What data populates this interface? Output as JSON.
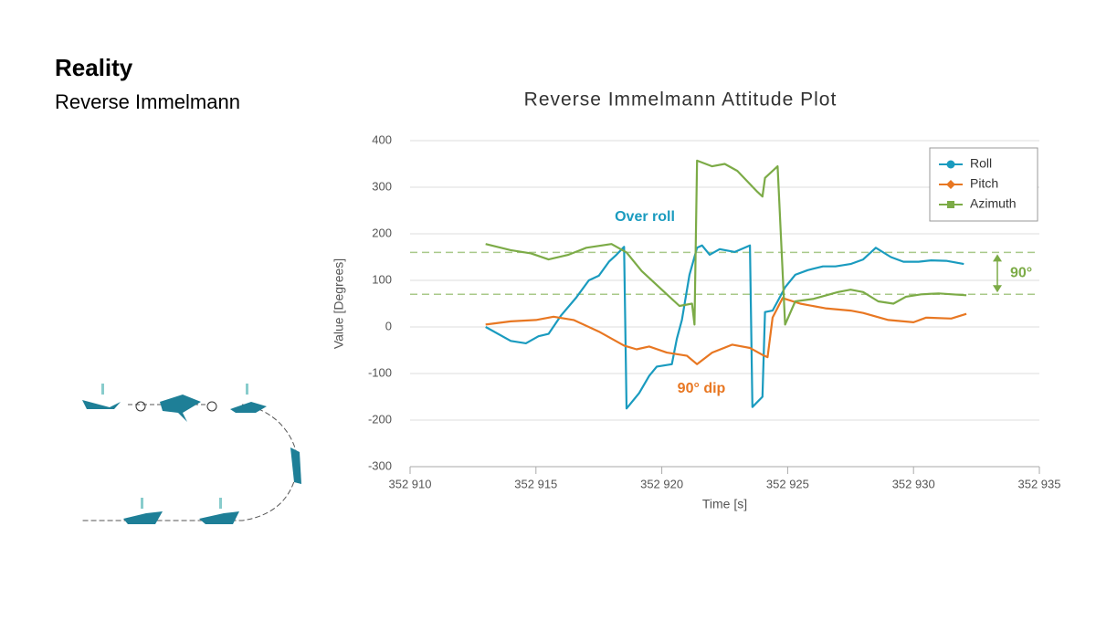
{
  "header": {
    "title": "Reality",
    "subtitle": "Reverse Immelmann"
  },
  "chart_data": {
    "type": "line",
    "title": "Reverse Immelmann Attitude Plot",
    "x_label": "Time [s]",
    "y_label": "Value [Degrees]",
    "xlim": [
      352910,
      352935
    ],
    "xticks": [
      {
        "value": 352910,
        "label": "352 910"
      },
      {
        "value": 352915,
        "label": "352 915"
      },
      {
        "value": 352920,
        "label": "352 920"
      },
      {
        "value": 352925,
        "label": "352 925"
      },
      {
        "value": 352930,
        "label": "352 930"
      },
      {
        "value": 352935,
        "label": "352 935"
      }
    ],
    "ylim": [
      -300,
      400
    ],
    "yticks": [
      -300,
      -200,
      -100,
      0,
      100,
      200,
      300,
      400
    ],
    "grid": true,
    "legend": "upper right",
    "reference_lines": [
      160,
      70
    ],
    "annotations": [
      "Over roll",
      "90° dip",
      "90°"
    ],
    "series": [
      {
        "name": "Roll",
        "color": "#1a9bbf",
        "marker": "circle",
        "x": [
          352913.0,
          352914.0,
          352914.6,
          352915.1,
          352915.5,
          352916.0,
          352916.6,
          352917.1,
          352917.5,
          352917.9,
          352918.2,
          352918.5,
          352918.6,
          352919.1,
          352919.5,
          352919.8,
          352920.4,
          352920.6,
          352920.8,
          352921.1,
          352921.4,
          352921.6,
          352921.9,
          352922.3,
          352922.9,
          352923.5,
          352923.6,
          352924.0,
          352924.1,
          352924.4,
          352924.6,
          352924.9,
          352925.3,
          352925.8,
          352926.4,
          352926.9,
          352927.5,
          352928.0,
          352928.5,
          352929.1,
          352929.6,
          352930.2,
          352930.7,
          352931.3,
          352932.0
        ],
        "values": [
          0,
          -30,
          -35,
          -20,
          -15,
          25,
          63,
          100,
          110,
          140,
          155,
          172,
          -175,
          -142,
          -105,
          -85,
          -80,
          -25,
          15,
          112,
          170,
          175,
          155,
          167,
          161,
          175,
          -172,
          -150,
          32,
          35,
          55,
          85,
          112,
          122,
          130,
          130,
          135,
          145,
          170,
          150,
          140,
          140,
          143,
          142,
          135
        ]
      },
      {
        "name": "Pitch",
        "color": "#e87722",
        "marker": "diamond",
        "x": [
          352913.0,
          352914.0,
          352915.0,
          352915.7,
          352916.5,
          352917.5,
          352918.5,
          352919.0,
          352919.5,
          352920.2,
          352921.0,
          352921.4,
          352922.0,
          352922.8,
          352923.5,
          352924.0,
          352924.2,
          352924.4,
          352924.8,
          352925.5,
          352926.5,
          352927.5,
          352928.0,
          352929.0,
          352930.0,
          352930.5,
          352931.5,
          352932.1
        ],
        "values": [
          5,
          12,
          15,
          22,
          15,
          -10,
          -40,
          -48,
          -42,
          -55,
          -62,
          -80,
          -55,
          -38,
          -45,
          -60,
          -65,
          20,
          62,
          50,
          40,
          35,
          30,
          15,
          10,
          20,
          18,
          28
        ]
      },
      {
        "name": "Azimuth",
        "color": "#7cab47",
        "marker": "square",
        "x": [
          352913.0,
          352914.0,
          352914.8,
          352915.5,
          352916.3,
          352917.0,
          352918.0,
          352918.6,
          352919.2,
          352920.0,
          352920.7,
          352921.2,
          352921.3,
          352921.4,
          352922.0,
          352922.5,
          352923.0,
          352923.8,
          352924.0,
          352924.1,
          352924.6,
          352924.9,
          352925.3,
          352926.0,
          352927.0,
          352927.5,
          352928.0,
          352928.6,
          352929.2,
          352929.7,
          352930.3,
          352931.0,
          352932.1
        ],
        "values": [
          178,
          165,
          158,
          145,
          155,
          170,
          178,
          160,
          120,
          80,
          45,
          50,
          5,
          357,
          345,
          350,
          335,
          290,
          280,
          320,
          345,
          5,
          55,
          60,
          75,
          80,
          75,
          55,
          50,
          65,
          70,
          72,
          68
        ]
      }
    ]
  }
}
